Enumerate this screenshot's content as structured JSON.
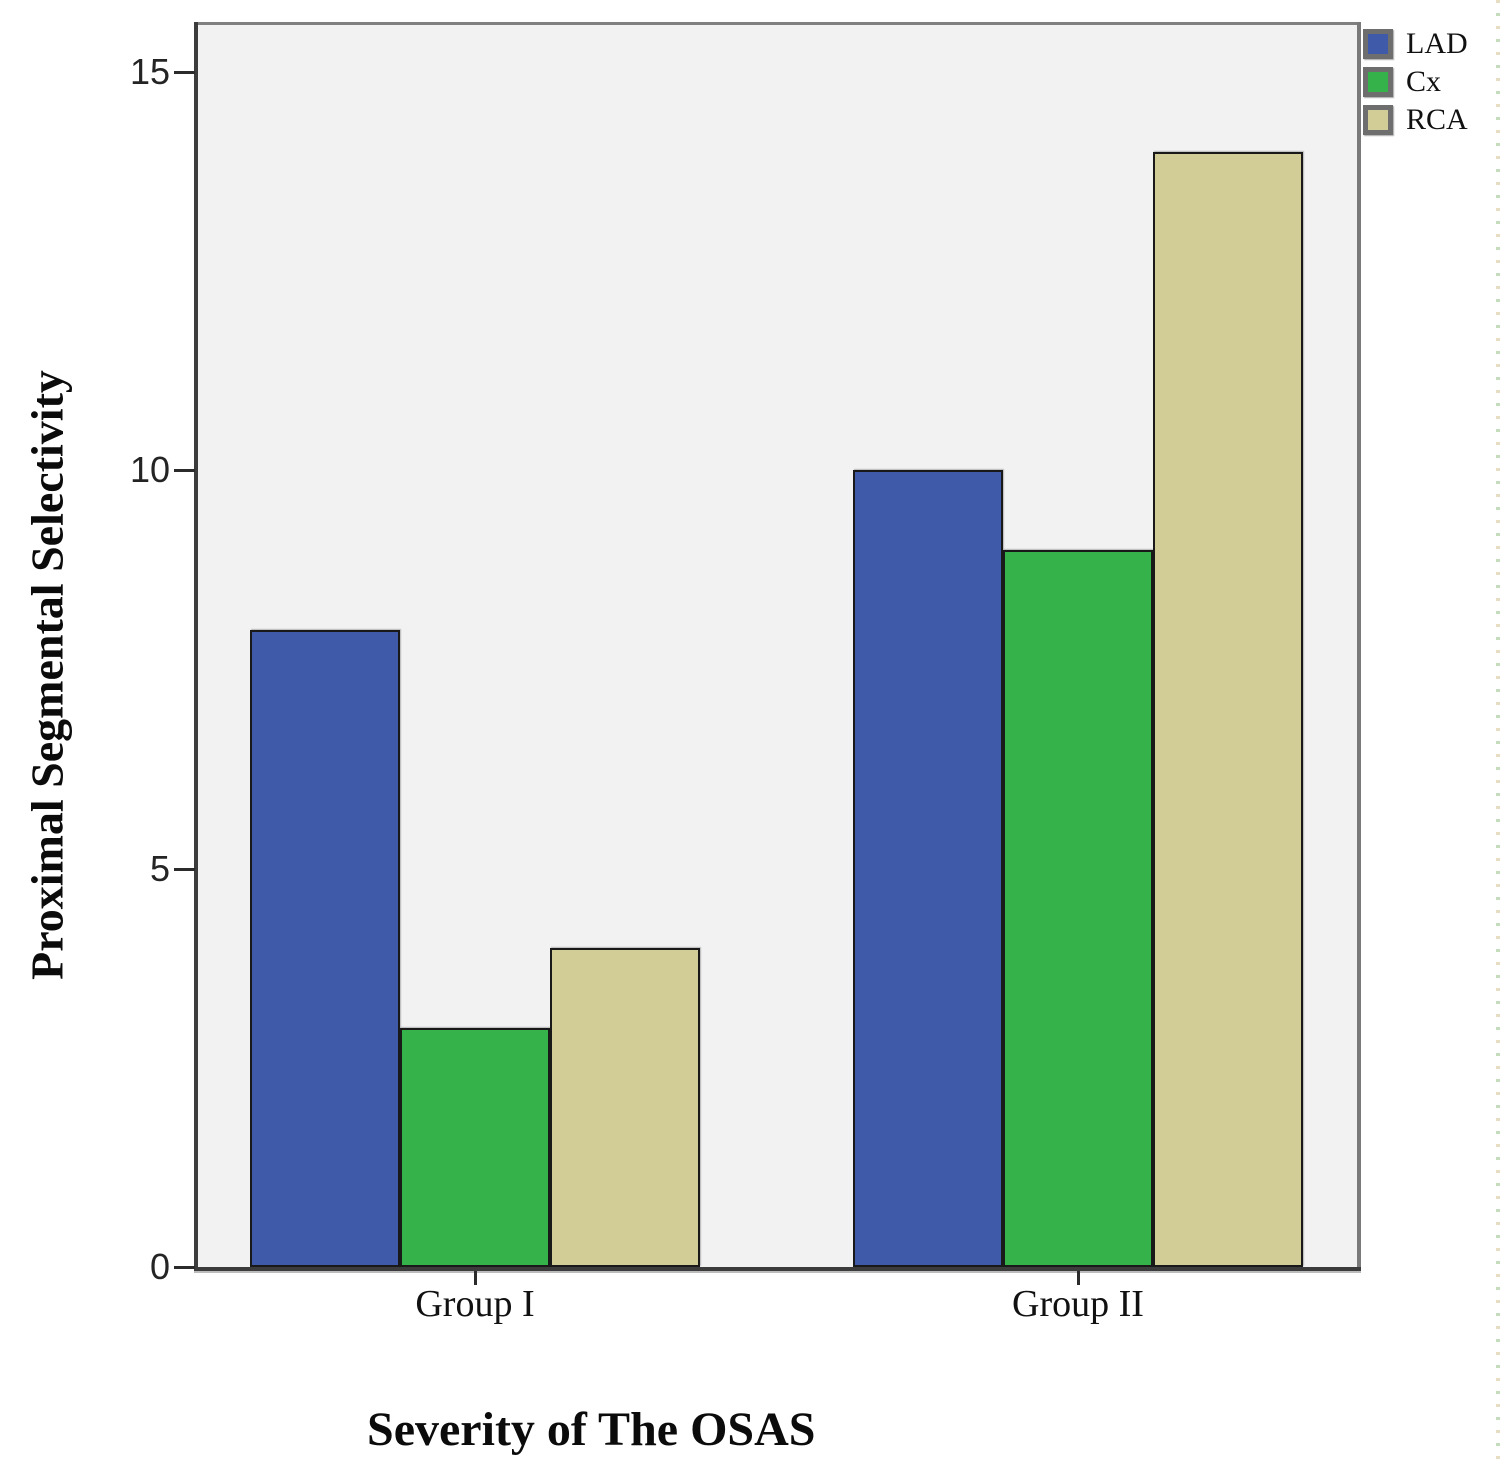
{
  "chart_data": {
    "type": "bar",
    "title": "",
    "xlabel": "Severity of The OSAS",
    "ylabel": "Proximal Segmental Selectivity",
    "categories": [
      "Group I",
      "Group II"
    ],
    "series": [
      {
        "name": "LAD",
        "color": "#3F5AA9",
        "values": [
          8,
          10
        ]
      },
      {
        "name": "Cx",
        "color": "#35B24A",
        "values": [
          3,
          9
        ]
      },
      {
        "name": "RCA",
        "color": "#D2CC97",
        "values": [
          4,
          14
        ]
      }
    ],
    "ylim": [
      0,
      15.6
    ],
    "yticks": [
      0,
      5,
      10,
      15
    ],
    "grid": false,
    "legend_position": "outside-top-right",
    "plot_background": "#F2F2F3",
    "bar_border_color": "#191919",
    "axis_color": "#3c3c3c",
    "frame_color": "#7a7a7a"
  }
}
